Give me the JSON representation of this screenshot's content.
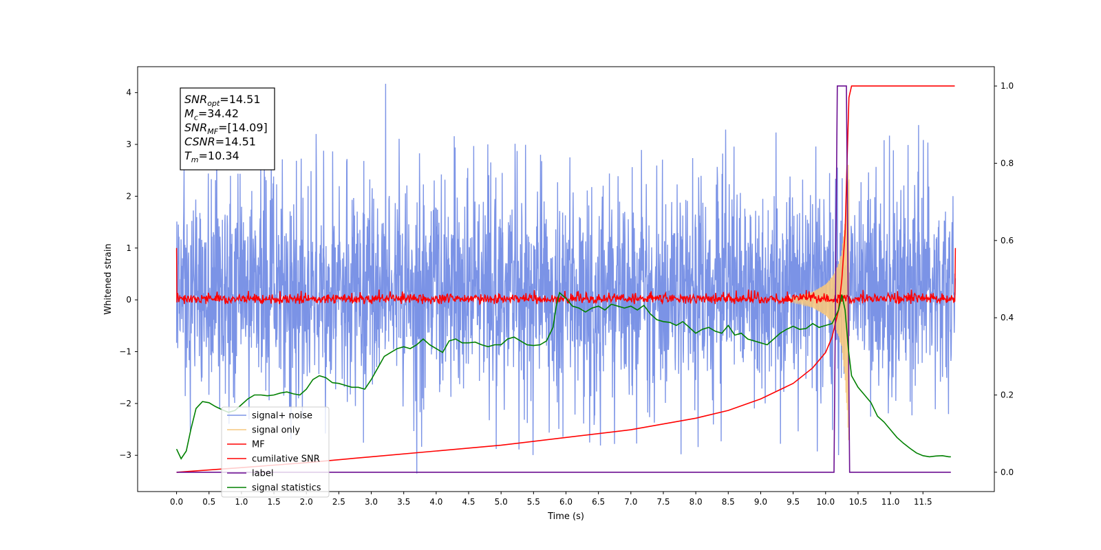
{
  "chart_data": {
    "type": "line",
    "xlabel": "Time (s)",
    "ylabel": "Whitened strain",
    "xlim": [
      -0.6,
      12.6
    ],
    "ylim": [
      -3.7,
      4.5
    ],
    "y2lim": [
      -0.05,
      1.05
    ],
    "x_ticks": [
      "0.0",
      "0.5",
      "1.0",
      "1.5",
      "2.0",
      "2.5",
      "3.0",
      "3.5",
      "4.0",
      "4.5",
      "5.0",
      "5.5",
      "6.0",
      "6.5",
      "7.0",
      "7.5",
      "8.0",
      "8.5",
      "9.0",
      "9.5",
      "10.0",
      "10.5",
      "11.0",
      "11.5"
    ],
    "y_ticks": [
      "4",
      "3",
      "2",
      "1",
      "0",
      "−1",
      "−2",
      "−3"
    ],
    "y2_ticks": [
      "1.0",
      "0.8",
      "0.6",
      "0.4",
      "0.2",
      "0.0"
    ],
    "grid": false,
    "legend_position": "lower-left",
    "annotation": {
      "lines": [
        {
          "sym": "SNR",
          "sub": "opt",
          "rest": "=14.51"
        },
        {
          "sym": "M",
          "sub": "c",
          "rest": "=34.42"
        },
        {
          "sym": "SNR",
          "sub": "MF",
          "rest": "=[14.09]"
        },
        {
          "sym": "CSNR",
          "sub": "",
          "rest": "=14.51"
        },
        {
          "sym": "T",
          "sub": "m",
          "rest": "=10.34"
        }
      ]
    },
    "series": [
      {
        "name": "signal+ noise",
        "axis": "left",
        "color": "#7b93e6",
        "description_stats": {
          "x_start": 0.0,
          "x_end": 12.0,
          "typical_low": -2.1,
          "typical_high": 2.5,
          "max": 4.17,
          "max_at": 3.22,
          "min": -3.35,
          "min_at": 3.7
        }
      },
      {
        "name": "signal only",
        "axis": "left",
        "color": "#f5c77e",
        "x": [
          9.4,
          9.6,
          9.8,
          10.0,
          10.1,
          10.2,
          10.25,
          10.3,
          10.33,
          10.36
        ],
        "envelope": [
          0.03,
          0.08,
          0.15,
          0.3,
          0.45,
          0.7,
          0.95,
          1.5,
          2.2,
          2.8
        ]
      },
      {
        "name": "MF",
        "axis": "left",
        "color": "#ff0000",
        "x_start": 0.0,
        "x_end": 12.0,
        "start_value": 1.0,
        "band": [
          -0.08,
          0.2
        ],
        "end_value": 1.0
      },
      {
        "name": "cumilative SNR",
        "axis": "right",
        "color": "#ff0000",
        "x": [
          0.0,
          1.0,
          2.0,
          3.0,
          4.0,
          5.0,
          6.0,
          7.0,
          8.0,
          8.5,
          9.0,
          9.5,
          9.8,
          10.0,
          10.1,
          10.2,
          10.25,
          10.3,
          10.33,
          10.36,
          10.4,
          11.0,
          11.5,
          11.99
        ],
        "values": [
          0.0,
          0.012,
          0.025,
          0.04,
          0.055,
          0.07,
          0.09,
          0.11,
          0.14,
          0.16,
          0.19,
          0.23,
          0.27,
          0.31,
          0.35,
          0.42,
          0.5,
          0.62,
          0.8,
          0.97,
          1.0,
          1.0,
          1.0,
          1.0
        ]
      },
      {
        "name": "label",
        "axis": "right",
        "color": "#6a0d91",
        "x": [
          0.0,
          10.13,
          10.18,
          10.32,
          10.37,
          11.93
        ],
        "values": [
          0.0,
          0.0,
          1.0,
          1.0,
          0.0,
          0.0
        ]
      },
      {
        "name": "signal statistics",
        "axis": "right",
        "color": "#008000",
        "x": [
          0.0,
          0.07,
          0.15,
          0.22,
          0.3,
          0.4,
          0.5,
          0.6,
          0.7,
          0.8,
          0.9,
          1.0,
          1.1,
          1.2,
          1.3,
          1.4,
          1.5,
          1.6,
          1.7,
          1.8,
          1.9,
          2.0,
          2.1,
          2.2,
          2.3,
          2.4,
          2.5,
          2.6,
          2.7,
          2.8,
          2.9,
          3.0,
          3.1,
          3.2,
          3.3,
          3.4,
          3.5,
          3.6,
          3.7,
          3.8,
          3.9,
          4.0,
          4.1,
          4.2,
          4.3,
          4.4,
          4.5,
          4.6,
          4.7,
          4.8,
          4.9,
          5.0,
          5.1,
          5.2,
          5.3,
          5.4,
          5.5,
          5.6,
          5.7,
          5.8,
          5.85,
          5.9,
          6.0,
          6.1,
          6.2,
          6.3,
          6.4,
          6.5,
          6.6,
          6.7,
          6.8,
          6.9,
          7.0,
          7.1,
          7.2,
          7.3,
          7.4,
          7.5,
          7.6,
          7.7,
          7.8,
          7.9,
          8.0,
          8.1,
          8.2,
          8.3,
          8.4,
          8.5,
          8.6,
          8.7,
          8.8,
          8.9,
          9.0,
          9.1,
          9.2,
          9.3,
          9.4,
          9.5,
          9.6,
          9.7,
          9.8,
          9.9,
          10.0,
          10.1,
          10.2,
          10.25,
          10.3,
          10.35,
          10.4,
          10.5,
          10.6,
          10.7,
          10.8,
          10.9,
          11.0,
          11.1,
          11.2,
          11.3,
          11.4,
          11.5,
          11.6,
          11.7,
          11.8,
          11.9,
          11.93
        ],
        "values": [
          0.06,
          0.035,
          0.055,
          0.11,
          0.165,
          0.183,
          0.18,
          0.17,
          0.162,
          0.155,
          0.16,
          0.175,
          0.19,
          0.2,
          0.2,
          0.198,
          0.2,
          0.205,
          0.208,
          0.203,
          0.2,
          0.215,
          0.24,
          0.25,
          0.245,
          0.232,
          0.23,
          0.225,
          0.22,
          0.22,
          0.215,
          0.24,
          0.27,
          0.3,
          0.31,
          0.32,
          0.325,
          0.32,
          0.33,
          0.345,
          0.33,
          0.32,
          0.31,
          0.34,
          0.345,
          0.335,
          0.335,
          0.337,
          0.33,
          0.325,
          0.33,
          0.33,
          0.345,
          0.35,
          0.34,
          0.33,
          0.328,
          0.33,
          0.34,
          0.375,
          0.43,
          0.465,
          0.45,
          0.43,
          0.425,
          0.415,
          0.425,
          0.43,
          0.42,
          0.435,
          0.43,
          0.425,
          0.43,
          0.42,
          0.432,
          0.41,
          0.395,
          0.39,
          0.388,
          0.38,
          0.39,
          0.375,
          0.36,
          0.37,
          0.375,
          0.365,
          0.36,
          0.38,
          0.355,
          0.36,
          0.345,
          0.34,
          0.335,
          0.33,
          0.345,
          0.36,
          0.37,
          0.378,
          0.37,
          0.372,
          0.385,
          0.375,
          0.38,
          0.385,
          0.42,
          0.46,
          0.42,
          0.32,
          0.25,
          0.22,
          0.2,
          0.18,
          0.145,
          0.13,
          0.11,
          0.09,
          0.075,
          0.062,
          0.05,
          0.043,
          0.04,
          0.042,
          0.043,
          0.04,
          0.04
        ]
      }
    ]
  }
}
